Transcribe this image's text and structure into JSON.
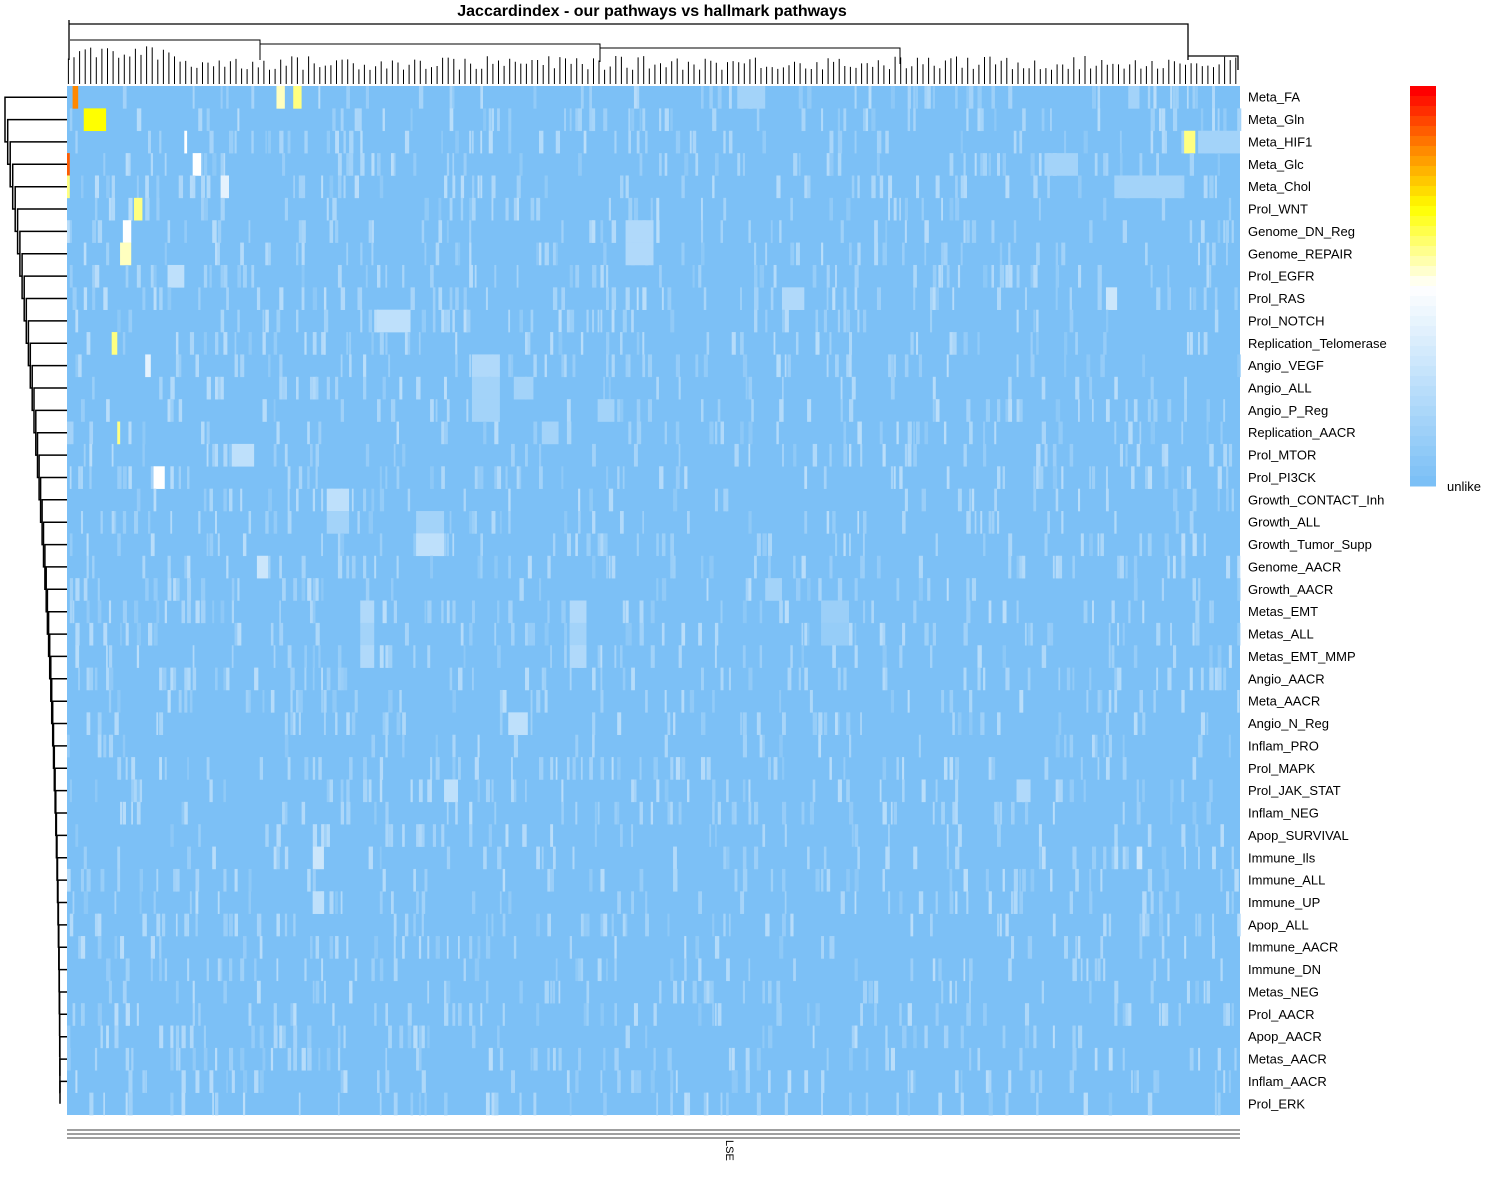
{
  "chart_data": {
    "type": "heatmap",
    "title": "Jaccardindex - our pathways vs hallmark pathways",
    "xlabel": "",
    "ylabel": "",
    "column_label_visible": "LSE",
    "legend": {
      "label": "unlike",
      "placement": "right",
      "scale": [
        "#7cc0f6",
        "#ffffff",
        "#ffff00",
        "#ff8800",
        "#ff0000"
      ]
    },
    "n_columns": 420,
    "rows": [
      "Meta_FA",
      "Meta_Gln",
      "Meta_HIF1",
      "Meta_Glc",
      "Meta_Chol",
      "Prol_WNT",
      "Genome_DN_Reg",
      "Genome_REPAIR",
      "Prol_EGFR",
      "Prol_RAS",
      "Prol_NOTCH",
      "Replication_Telomerase",
      "Angio_VEGF",
      "Angio_ALL",
      "Angio_P_Reg",
      "Replication_AACR",
      "Prol_MTOR",
      "Prol_PI3CK",
      "Growth_CONTACT_Inh",
      "Growth_ALL",
      "Growth_Tumor_Supp",
      "Genome_AACR",
      "Growth_AACR",
      "Metas_EMT",
      "Metas_ALL",
      "Metas_EMT_MMP",
      "Angio_AACR",
      "Meta_AACR",
      "Angio_N_Reg",
      "Inflam_PRO",
      "Prol_MAPK",
      "Prol_JAK_STAT",
      "Inflam_NEG",
      "Apop_SURVIVAL",
      "Immune_Ils",
      "Immune_ALL",
      "Immune_UP",
      "Apop_ALL",
      "Immune_AACR",
      "Immune_DN",
      "Metas_NEG",
      "Prol_AACR",
      "Apop_AACR",
      "Metas_AACR",
      "Inflam_AACR",
      "Prol_ERK"
    ],
    "cells_note_baseline": 0,
    "highlights": [
      {
        "row": "Meta_FA",
        "cols": [
          [
            2,
            4,
            0.85
          ],
          [
            75,
            78,
            0.55
          ],
          [
            81,
            84,
            0.6
          ],
          [
            240,
            250,
            0.15
          ],
          [
            380,
            384,
            0.15
          ]
        ]
      },
      {
        "row": "Meta_Gln",
        "cols": [
          [
            6,
            14,
            0.7
          ]
        ]
      },
      {
        "row": "Meta_HIF1",
        "cols": [
          [
            400,
            404,
            0.6
          ],
          [
            405,
            420,
            0.15
          ],
          [
            42,
            43,
            0.5
          ]
        ]
      },
      {
        "row": "Meta_Glc",
        "cols": [
          [
            0,
            1,
            0.9
          ],
          [
            45,
            48,
            0.5
          ],
          [
            350,
            362,
            0.15
          ]
        ]
      },
      {
        "row": "Meta_Chol",
        "cols": [
          [
            0,
            1,
            0.6
          ],
          [
            375,
            399,
            0.15
          ],
          [
            55,
            58,
            0.4
          ]
        ]
      },
      {
        "row": "Prol_WNT",
        "cols": [
          [
            24,
            27,
            0.6
          ]
        ]
      },
      {
        "row": "Genome_DN_Reg",
        "cols": [
          [
            20,
            23,
            0.5
          ],
          [
            200,
            210,
            0.2
          ]
        ]
      },
      {
        "row": "Genome_REPAIR",
        "cols": [
          [
            19,
            23,
            0.55
          ],
          [
            200,
            210,
            0.2
          ]
        ]
      },
      {
        "row": "Prol_EGFR",
        "cols": [
          [
            36,
            42,
            0.25
          ]
        ]
      },
      {
        "row": "Prol_RAS",
        "cols": [
          [
            256,
            264,
            0.2
          ],
          [
            372,
            376,
            0.3
          ]
        ]
      },
      {
        "row": "Prol_NOTCH",
        "cols": [
          [
            111,
            123,
            0.25
          ]
        ]
      },
      {
        "row": "Replication_Telomerase",
        "cols": [
          [
            16,
            18,
            0.6
          ]
        ]
      },
      {
        "row": "Angio_VEGF",
        "cols": [
          [
            28,
            30,
            0.4
          ],
          [
            145,
            155,
            0.2
          ]
        ]
      },
      {
        "row": "Angio_ALL",
        "cols": [
          [
            145,
            155,
            0.15
          ],
          [
            160,
            167,
            0.15
          ]
        ]
      },
      {
        "row": "Angio_P_Reg",
        "cols": [
          [
            145,
            155,
            0.15
          ],
          [
            190,
            196,
            0.15
          ]
        ]
      },
      {
        "row": "Replication_AACR",
        "cols": [
          [
            18,
            19,
            0.6
          ],
          [
            170,
            176,
            0.15
          ]
        ]
      },
      {
        "row": "Prol_MTOR",
        "cols": [
          [
            59,
            67,
            0.25
          ]
        ]
      },
      {
        "row": "Prol_PI3CK",
        "cols": [
          [
            31,
            35,
            0.5
          ]
        ]
      },
      {
        "row": "Growth_CONTACT_Inh",
        "cols": [
          [
            93,
            101,
            0.25
          ]
        ]
      },
      {
        "row": "Growth_ALL",
        "cols": [
          [
            93,
            101,
            0.15
          ],
          [
            125,
            135,
            0.15
          ]
        ]
      },
      {
        "row": "Growth_Tumor_Supp",
        "cols": [
          [
            125,
            135,
            0.25
          ]
        ]
      },
      {
        "row": "Genome_AACR",
        "cols": [
          [
            68,
            72,
            0.3
          ]
        ]
      },
      {
        "row": "Growth_AACR",
        "cols": [
          [
            250,
            256,
            0.15
          ]
        ]
      },
      {
        "row": "Metas_EMT",
        "cols": [
          [
            105,
            110,
            0.2
          ],
          [
            180,
            186,
            0.2
          ],
          [
            270,
            280,
            0.12
          ]
        ]
      },
      {
        "row": "Metas_ALL",
        "cols": [
          [
            105,
            110,
            0.15
          ],
          [
            180,
            186,
            0.15
          ],
          [
            270,
            280,
            0.1
          ]
        ]
      },
      {
        "row": "Metas_EMT_MMP",
        "cols": [
          [
            105,
            110,
            0.2
          ],
          [
            180,
            186,
            0.2
          ]
        ]
      },
      {
        "row": "Angio_N_Reg",
        "cols": [
          [
            158,
            165,
            0.25
          ]
        ]
      },
      {
        "row": "Immune_Ils",
        "cols": [
          [
            88,
            92,
            0.3
          ],
          [
            383,
            385,
            0.3
          ]
        ]
      },
      {
        "row": "Immune_UP",
        "cols": [
          [
            88,
            92,
            0.25
          ]
        ]
      },
      {
        "row": "Prol_JAK_STAT",
        "cols": [
          [
            340,
            345,
            0.2
          ],
          [
            135,
            140,
            0.25
          ]
        ]
      }
    ]
  }
}
